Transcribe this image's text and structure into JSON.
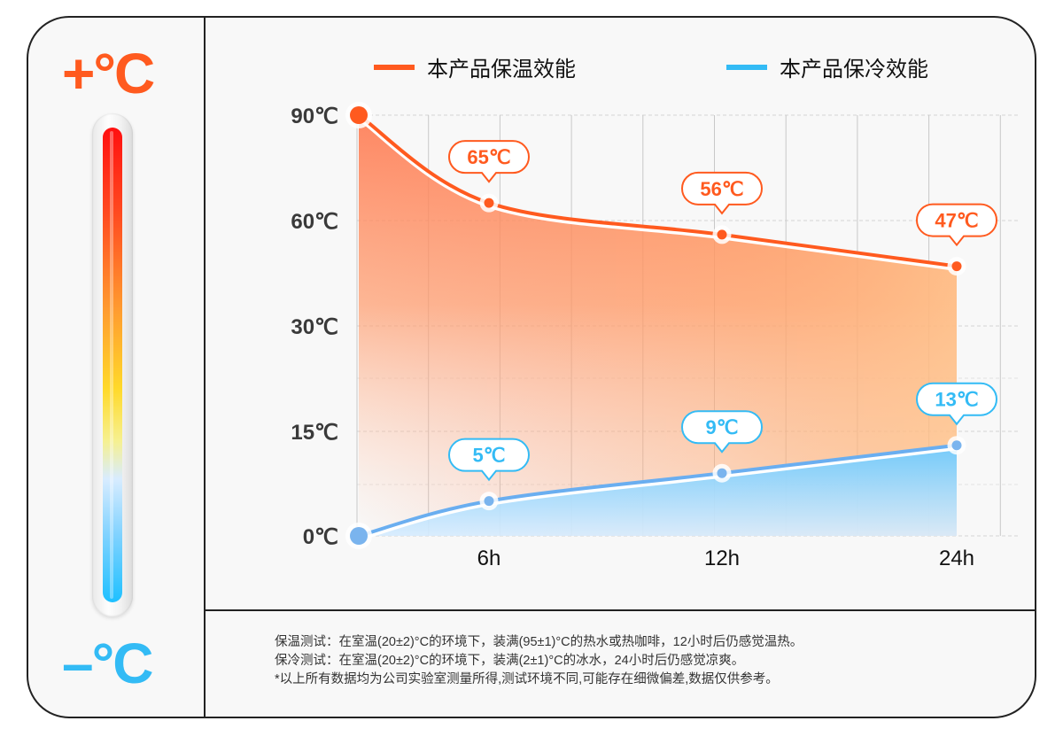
{
  "left_panel": {
    "hot_label": "+°C",
    "cold_label": "–°C",
    "thermometer_gradient": [
      "#ff1010",
      "#ff9a30",
      "#ffd92a",
      "#d8ecff",
      "#1ec0ff"
    ]
  },
  "colors": {
    "hot": "#ff5a1f",
    "cold": "#33bbf5",
    "cold_line": "#6aaef0"
  },
  "chart_data": {
    "type": "area",
    "title": "",
    "xlabel": "",
    "ylabel": "",
    "legend_position": "top",
    "grid": true,
    "x_tick_labels": [
      "6h",
      "12h",
      "24h"
    ],
    "y_tick_labels": [
      "90℃",
      "60℃",
      "30℃",
      "15℃",
      "0℃"
    ],
    "y_ticks": [
      90,
      60,
      30,
      15,
      0
    ],
    "x": [
      0,
      6,
      12,
      24
    ],
    "series": [
      {
        "name": "本产品保温效能",
        "color": "#ff5a1f",
        "values": [
          90,
          65,
          56,
          47
        ],
        "data_labels": [
          null,
          "65℃",
          "56℃",
          "47℃"
        ]
      },
      {
        "name": "本产品保冷效能",
        "color": "#33bbf5",
        "values": [
          0,
          5,
          9,
          13
        ],
        "data_labels": [
          null,
          "5℃",
          "9℃",
          "13℃"
        ]
      }
    ]
  },
  "notes": [
    "保温测试：在室温(20±2)°C的环境下，装满(95±1)°C的热水或热咖啡，12小时后仍感觉温热。",
    "保冷测试：在室温(20±2)°C的环境下，装满(2±1)°C的冰水，24小时后仍感觉凉爽。",
    "*以上所有数据均为公司实验室测量所得,测试环境不同,可能存在细微偏差,数据仅供参考。"
  ]
}
